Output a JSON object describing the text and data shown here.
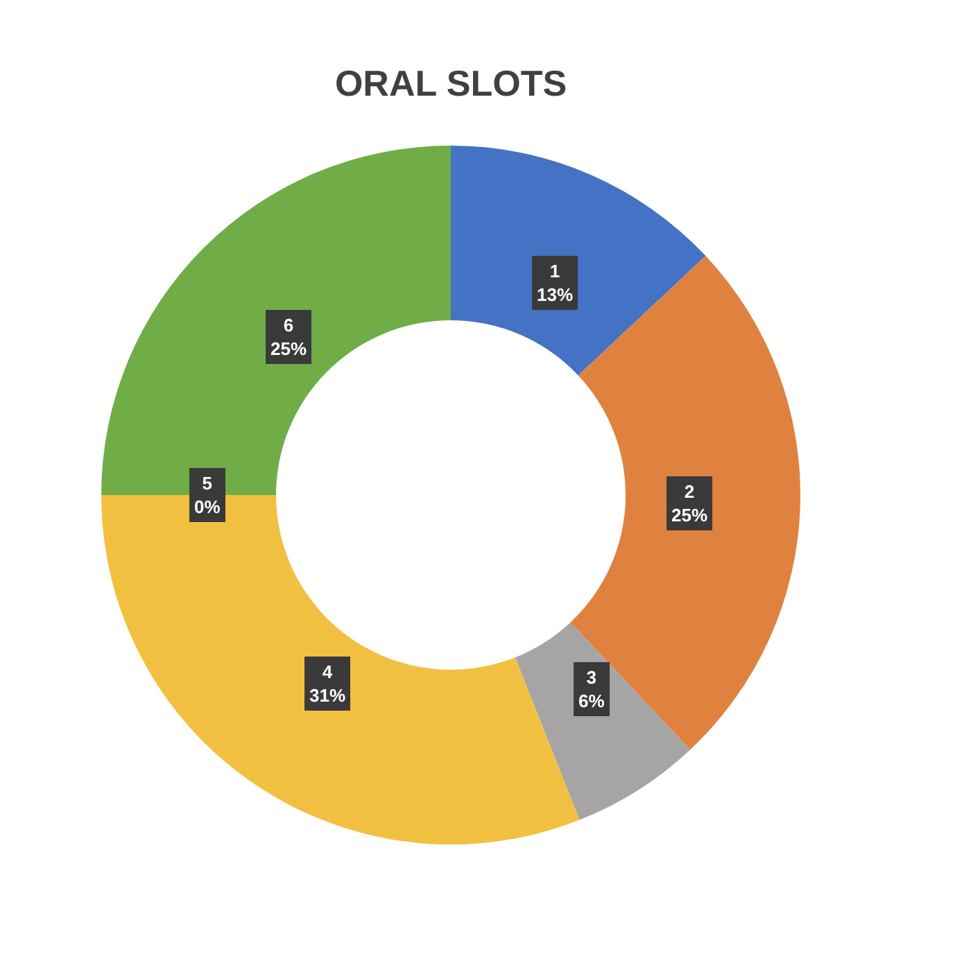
{
  "chart_data": {
    "type": "donut",
    "title": "ORAL SLOTS",
    "categories": [
      "1",
      "2",
      "3",
      "4",
      "5",
      "6"
    ],
    "values": [
      13,
      25,
      6,
      31,
      0,
      25
    ],
    "value_labels": [
      "13%",
      "25%",
      "6%",
      "31%",
      "0%",
      "25%"
    ],
    "colors": [
      "#4472c4",
      "#e0823f",
      "#a5a5a5",
      "#f2c040",
      "#5b9bd5",
      "#70ad47"
    ],
    "legend": false
  }
}
